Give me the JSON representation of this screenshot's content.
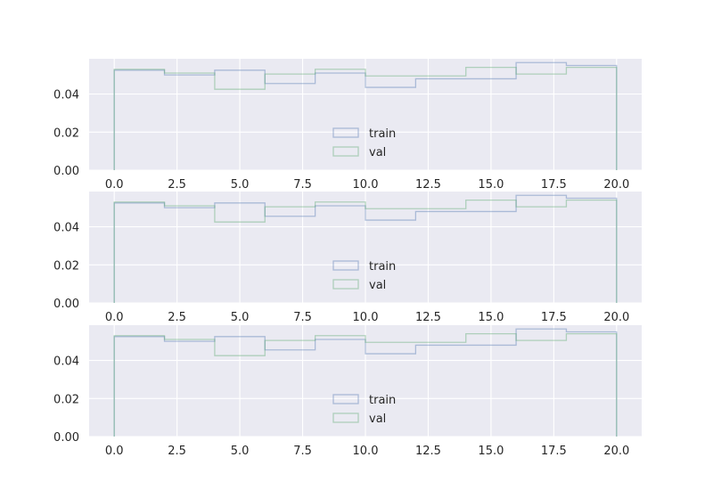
{
  "chart_data": [
    {
      "type": "histogram",
      "bins": [
        0,
        2,
        4,
        6,
        8,
        10,
        12,
        14,
        16,
        18,
        20
      ],
      "xlim": [
        -1,
        21
      ],
      "ylim": [
        0,
        0.0585
      ],
      "x_ticks": [
        0,
        2.5,
        5,
        7.5,
        10,
        12.5,
        15,
        17.5,
        20
      ],
      "x_tick_labels": [
        "0.0",
        "2.5",
        "5.0",
        "7.5",
        "10.0",
        "12.5",
        "15.0",
        "17.5",
        "20.0"
      ],
      "y_ticks": [
        0,
        0.02,
        0.04
      ],
      "y_tick_labels": [
        "0.00",
        "0.02",
        "0.04"
      ],
      "grid": true,
      "legend_position": "lower-center",
      "series": [
        {
          "name": "train",
          "color": "#4c72b0",
          "values": [
            0.0525,
            0.05,
            0.0525,
            0.0455,
            0.051,
            0.0435,
            0.048,
            0.048,
            0.0565,
            0.055
          ]
        },
        {
          "name": "val",
          "color": "#55a868",
          "values": [
            0.053,
            0.051,
            0.0425,
            0.0505,
            0.053,
            0.0495,
            0.0495,
            0.054,
            0.0505,
            0.054
          ]
        }
      ]
    },
    {
      "type": "histogram",
      "bins": [
        0,
        2,
        4,
        6,
        8,
        10,
        12,
        14,
        16,
        18,
        20
      ],
      "xlim": [
        -1,
        21
      ],
      "ylim": [
        0,
        0.0585
      ],
      "x_ticks": [
        0,
        2.5,
        5,
        7.5,
        10,
        12.5,
        15,
        17.5,
        20
      ],
      "x_tick_labels": [
        "0.0",
        "2.5",
        "5.0",
        "7.5",
        "10.0",
        "12.5",
        "15.0",
        "17.5",
        "20.0"
      ],
      "y_ticks": [
        0,
        0.02,
        0.04
      ],
      "y_tick_labels": [
        "0.00",
        "0.02",
        "0.04"
      ],
      "grid": true,
      "legend_position": "lower-center",
      "series": [
        {
          "name": "train",
          "color": "#4c72b0",
          "values": [
            0.0525,
            0.05,
            0.0525,
            0.0455,
            0.051,
            0.0435,
            0.048,
            0.048,
            0.0565,
            0.055
          ]
        },
        {
          "name": "val",
          "color": "#55a868",
          "values": [
            0.053,
            0.051,
            0.0425,
            0.0505,
            0.053,
            0.0495,
            0.0495,
            0.054,
            0.0505,
            0.054
          ]
        }
      ]
    },
    {
      "type": "histogram",
      "bins": [
        0,
        2,
        4,
        6,
        8,
        10,
        12,
        14,
        16,
        18,
        20
      ],
      "xlim": [
        -1,
        21
      ],
      "ylim": [
        0,
        0.0585
      ],
      "x_ticks": [
        0,
        2.5,
        5,
        7.5,
        10,
        12.5,
        15,
        17.5,
        20
      ],
      "x_tick_labels": [
        "0.0",
        "2.5",
        "5.0",
        "7.5",
        "10.0",
        "12.5",
        "15.0",
        "17.5",
        "20.0"
      ],
      "y_ticks": [
        0,
        0.02,
        0.04
      ],
      "y_tick_labels": [
        "0.00",
        "0.02",
        "0.04"
      ],
      "grid": true,
      "legend_position": "lower-center",
      "series": [
        {
          "name": "train",
          "color": "#4c72b0",
          "values": [
            0.0525,
            0.05,
            0.0525,
            0.0455,
            0.051,
            0.0435,
            0.048,
            0.048,
            0.0565,
            0.055
          ]
        },
        {
          "name": "val",
          "color": "#55a868",
          "values": [
            0.053,
            0.051,
            0.0425,
            0.0505,
            0.053,
            0.0495,
            0.0495,
            0.054,
            0.0505,
            0.054
          ]
        }
      ]
    }
  ]
}
